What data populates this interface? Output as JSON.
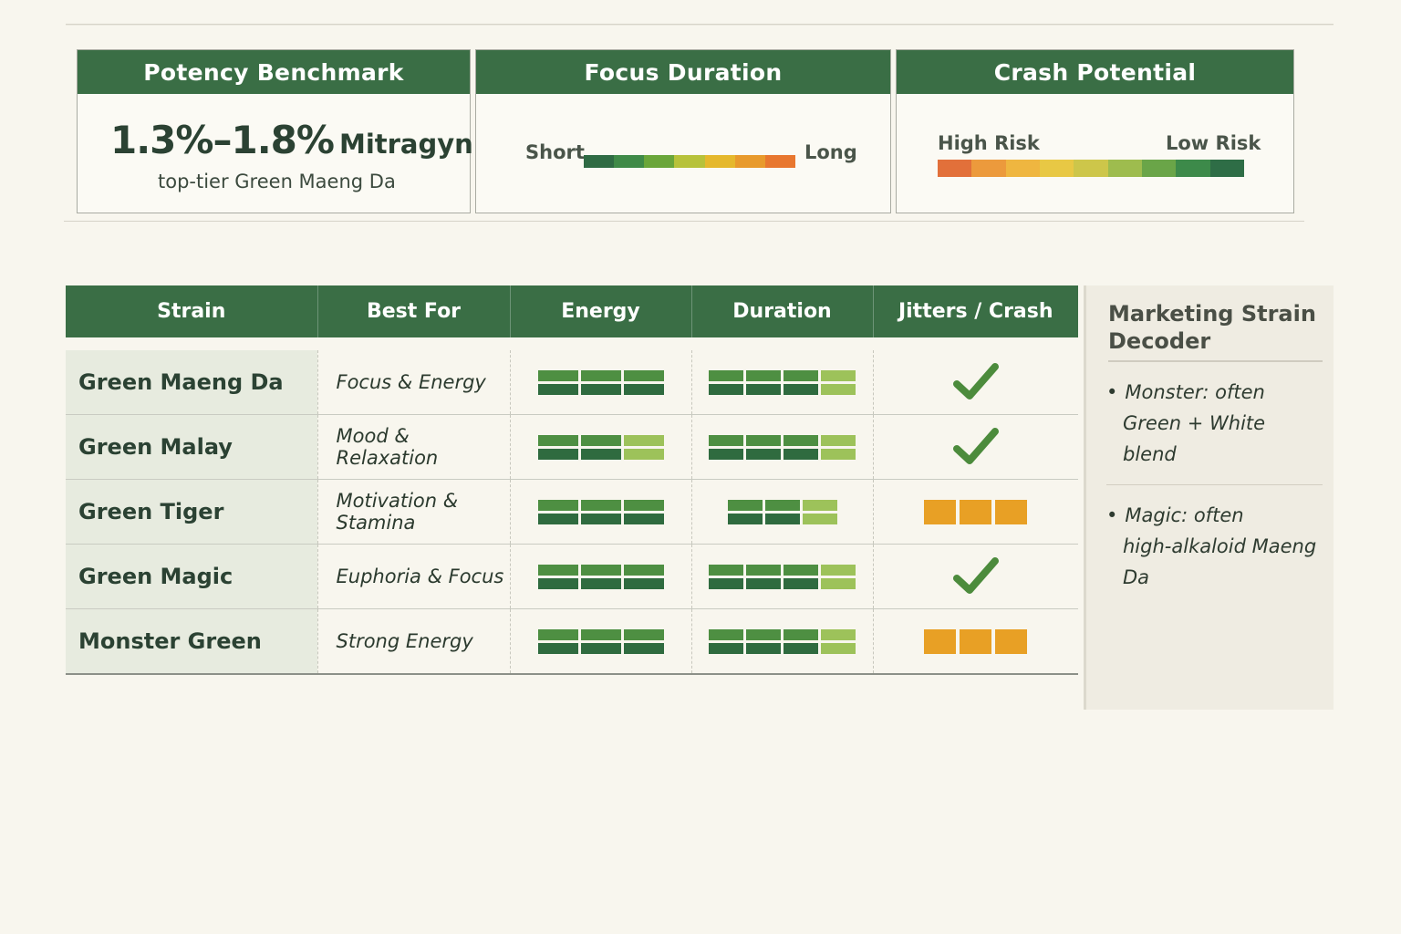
{
  "benchmarks": {
    "potency": {
      "title": "Potency Benchmark",
      "value": "1.3%–1.8%",
      "unit": "Mitragynine",
      "subtitle": "top-tier Green Maeng Da"
    },
    "focus": {
      "title": "Focus Duration",
      "left_label": "Short",
      "right_label": "Long",
      "gradient": [
        "#2f6b44",
        "#3f8a48",
        "#6aa63a",
        "#b7c23a",
        "#e5b82c",
        "#e89a2c",
        "#e8772f"
      ]
    },
    "crash": {
      "title": "Crash Potential",
      "left_label": "High Risk",
      "right_label": "Low Risk",
      "gradient": [
        "#e2703a",
        "#ec9a3c",
        "#efb640",
        "#e8c844",
        "#cdc64a",
        "#9ebc4e",
        "#6aa548",
        "#3d8a4a",
        "#2e6d46"
      ]
    }
  },
  "table": {
    "headers": [
      "Strain",
      "Best For",
      "Energy",
      "Duration",
      "Jitters / Crash"
    ],
    "rows": [
      {
        "strain": "Green Maeng Da",
        "best_for": "Focus & Energy",
        "energy": 3,
        "duration": 4,
        "duration_light": 1,
        "jitters": "check"
      },
      {
        "strain": "Green Malay",
        "best_for": "Mood & Relaxation",
        "energy": 3,
        "energy_light": 1,
        "duration": 4,
        "duration_light": 1,
        "jitters": "check"
      },
      {
        "strain": "Green Tiger",
        "best_for": "Motivation & Stamina",
        "energy": 3,
        "duration": 3,
        "duration_light": 1,
        "jitters": "warning"
      },
      {
        "strain": "Green Magic",
        "best_for": "Euphoria & Focus",
        "energy": 3,
        "duration": 4,
        "duration_light": 1,
        "jitters": "check"
      },
      {
        "strain": "Monster Green",
        "best_for": "Strong Energy",
        "energy": 3,
        "duration": 4,
        "duration_light": 1,
        "jitters": "warning"
      }
    ]
  },
  "sidebar": {
    "title": "Marketing Strain Decoder",
    "notes": [
      {
        "line1": "Monster: often",
        "line2": "Green + White blend"
      },
      {
        "line1": "Magic: often",
        "line2": "high-alkaloid Maeng Da"
      }
    ]
  },
  "colors": {
    "header_green": "#3a6e45",
    "meter_dark": "#2f6b3f",
    "meter_mid": "#4e8f42",
    "meter_light": "#9dc25a",
    "warning": "#e8a025",
    "check": "#4c8b3c"
  }
}
